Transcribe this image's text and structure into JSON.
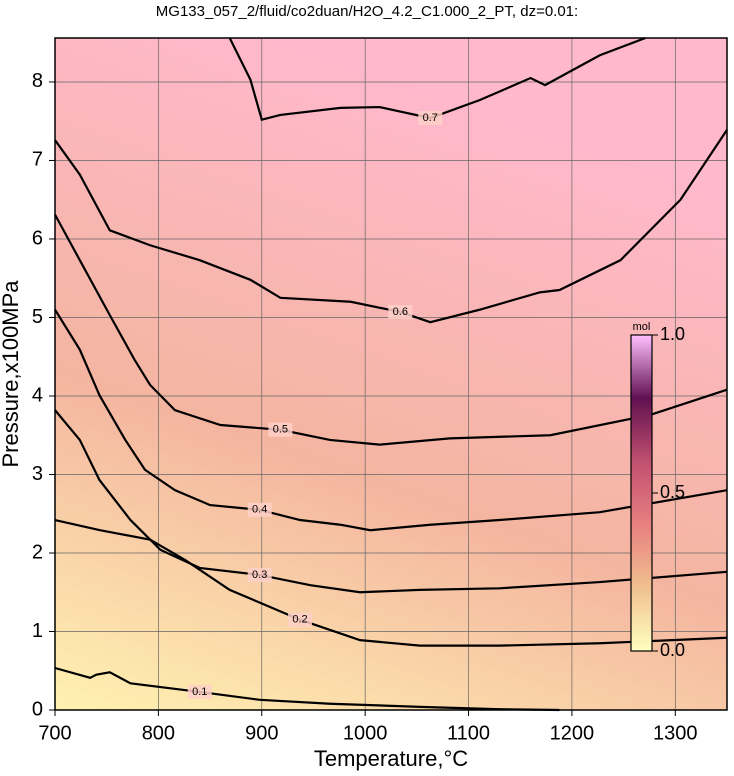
{
  "chart_data": {
    "type": "contour",
    "title": "MG133_057_2/fluid/co2duan/H2O_4.2_C1.000_2_PT, dz=0.01:",
    "x_label": "Temperature,°C",
    "y_label": "Pressure,x100MPa",
    "xlim": [
      700,
      1350
    ],
    "ylim": [
      0,
      8.56
    ],
    "xticks": [
      700,
      800,
      900,
      1000,
      1100,
      1200,
      1300
    ],
    "yticks": [
      0,
      1,
      2,
      3,
      4,
      5,
      6,
      7,
      8
    ],
    "grid": true,
    "line_color": "#000000",
    "contours": [
      {
        "level": 0.1,
        "x": [
          700,
          734,
          740,
          753,
          773,
          840,
          898,
          966,
          1053,
          1130,
          1188
        ],
        "y": [
          0.535,
          0.41,
          0.45,
          0.48,
          0.34,
          0.23,
          0.13,
          0.08,
          0.04,
          0.01,
          0
        ]
      },
      {
        "level": 0.2,
        "x": [
          700,
          743.5,
          792,
          826,
          869,
          937,
          995,
          1053,
          1130,
          1227,
          1350
        ],
        "y": [
          2.42,
          2.29,
          2.17,
          1.91,
          1.53,
          1.15,
          0.89,
          0.82,
          0.82,
          0.85,
          0.92
        ]
      },
      {
        "level": 0.3,
        "x": [
          700,
          724,
          743,
          773,
          802,
          840,
          898,
          947,
          995,
          1053,
          1130,
          1227,
          1350
        ],
        "y": [
          3.82,
          3.44,
          2.93,
          2.42,
          2.04,
          1.81,
          1.72,
          1.59,
          1.5,
          1.53,
          1.55,
          1.63,
          1.76
        ]
      },
      {
        "level": 0.4,
        "x": [
          700,
          724,
          743,
          768,
          787,
          816,
          850,
          898,
          937,
          976,
          1005,
          1063,
          1130,
          1227,
          1350
        ],
        "y": [
          5.1,
          4.59,
          4.01,
          3.44,
          3.06,
          2.8,
          2.61,
          2.55,
          2.42,
          2.36,
          2.29,
          2.36,
          2.42,
          2.52,
          2.8
        ]
      },
      {
        "level": 0.5,
        "x": [
          700,
          724,
          753,
          777,
          792,
          816,
          860,
          918,
          966,
          1014,
          1082,
          1179,
          1276,
          1350
        ],
        "y": [
          6.31,
          5.73,
          5.03,
          4.46,
          4.14,
          3.82,
          3.63,
          3.57,
          3.44,
          3.38,
          3.46,
          3.5,
          3.76,
          4.08
        ]
      },
      {
        "level": 0.6,
        "x": [
          700,
          724,
          753,
          792,
          840,
          889,
          918,
          986,
          1034,
          1063,
          1111,
          1169,
          1188,
          1247,
          1305,
          1350
        ],
        "y": [
          7.26,
          6.82,
          6.11,
          5.92,
          5.73,
          5.48,
          5.25,
          5.2,
          5.07,
          4.94,
          5.1,
          5.32,
          5.35,
          5.73,
          6.5,
          7.39
        ]
      },
      {
        "level": 0.7,
        "x": [
          869,
          889,
          900,
          918,
          976,
          1014,
          1063,
          1111,
          1160,
          1174,
          1227,
          1271
        ],
        "y": [
          8.56,
          8.03,
          7.52,
          7.58,
          7.67,
          7.68,
          7.54,
          7.77,
          8.05,
          7.96,
          8.34,
          8.56
        ]
      }
    ],
    "colorbar": {
      "label": "mol",
      "clim": [
        0,
        1
      ],
      "ticks": [
        {
          "value": 0,
          "label": "0.0"
        },
        {
          "value": 0.5,
          "label": "0.5"
        },
        {
          "value": 1,
          "label": "1.0"
        }
      ],
      "colors": [
        "#ffffc0",
        "#f0c090",
        "#e88080",
        "#c05070",
        "#601050",
        "#ffc0ff"
      ]
    }
  }
}
